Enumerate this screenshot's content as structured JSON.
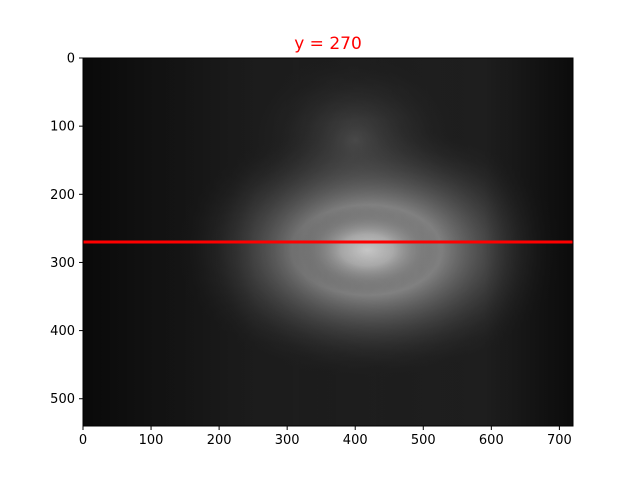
{
  "chart_data": {
    "type": "heatmap",
    "title": "y = 270",
    "title_color": "#ff0000",
    "xlabel": "",
    "ylabel": "",
    "xlim": [
      0,
      720
    ],
    "ylim": [
      540,
      0
    ],
    "y_axis_inverted": true,
    "x_ticks": [
      0,
      100,
      200,
      300,
      400,
      500,
      600,
      700
    ],
    "y_ticks": [
      0,
      100,
      200,
      300,
      400,
      500
    ],
    "colormap": "gray",
    "image_brightness_peak": {
      "x": 410,
      "y": 280
    },
    "horizontal_line": {
      "y": 270,
      "color": "#ff0000"
    },
    "grid": false
  }
}
